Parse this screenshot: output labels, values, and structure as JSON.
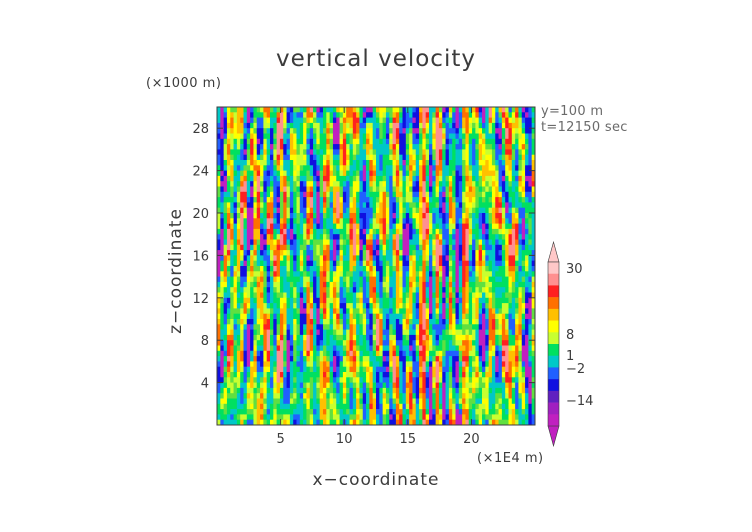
{
  "chart_data": {
    "type": "heatmap",
    "title": "vertical velocity",
    "xlabel": "x−coordinate",
    "ylabel": "z−coordinate",
    "x_unit_label": "(×1E4 m)",
    "y_unit_label": "(×1000 m)",
    "annotations": [
      "y=100 m",
      "t=12150 sec"
    ],
    "xlim": [
      0,
      25
    ],
    "ylim": [
      0,
      30
    ],
    "x_ticks": [
      5,
      10,
      15,
      20
    ],
    "x_tick_labels": [
      "5",
      "10",
      "15",
      "20"
    ],
    "y_ticks": [
      4,
      8,
      12,
      16,
      20,
      24,
      28
    ],
    "y_tick_labels": [
      "4",
      "8",
      "12",
      "16",
      "20",
      "24",
      "28"
    ],
    "colorbar": {
      "labeled_levels": [
        30,
        8,
        1,
        -2,
        -14
      ],
      "labels": [
        "30",
        "8",
        "1",
        "−2",
        "−14"
      ],
      "colors": [
        "#ffc8c8",
        "#ff9090",
        "#ff2020",
        "#ff7000",
        "#ffc000",
        "#ffff00",
        "#c8ff30",
        "#00e060",
        "#00c8c8",
        "#2060ff",
        "#1010e0",
        "#6020c0",
        "#a020c0",
        "#c020c0"
      ],
      "extend": "both"
    }
  }
}
